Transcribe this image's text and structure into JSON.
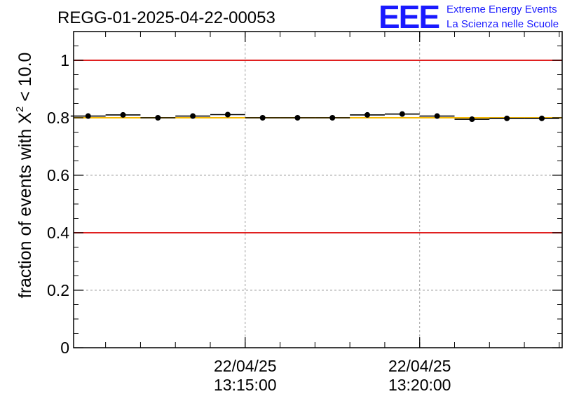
{
  "header": {
    "run_title": "REGG-01-2025-04-22-00053",
    "logo_letters": "EEE",
    "logo_line1": "Extreme Energy Events",
    "logo_line2": "La Scienza nelle Scuole"
  },
  "colors": {
    "logo_blue": "#1a1aff",
    "threshold_red": "#e02020",
    "reference_yellow": "#f5b800",
    "grid_gray": "#a0a0a0",
    "marker_black": "#000000"
  },
  "chart_data": {
    "type": "scatter",
    "title": "REGG-01-2025-04-22-00053",
    "ylabel_prefix": "fraction of events with ",
    "ylabel_symbol": "X",
    "ylabel_superscript": "2",
    "ylabel_suffix": " < 10.0",
    "xlabel": "",
    "x_unit": "minutes",
    "xlim": [
      "13:10:05",
      "13:24:05"
    ],
    "ylim": [
      0,
      1.1
    ],
    "y_ticks": [
      {
        "value": 0,
        "label": "0"
      },
      {
        "value": 0.2,
        "label": "0.2"
      },
      {
        "value": 0.4,
        "label": "0.4"
      },
      {
        "value": 0.6,
        "label": "0.6"
      },
      {
        "value": 0.8,
        "label": "0.8"
      },
      {
        "value": 1.0,
        "label": "1"
      }
    ],
    "x_major_ticks": [
      {
        "time": "13:15:00",
        "date_label": "22/04/25",
        "time_label": "13:15:00"
      },
      {
        "time": "13:20:00",
        "date_label": "22/04/25",
        "time_label": "13:20:00"
      }
    ],
    "x_minor_tick_step_min": 1,
    "grid": true,
    "reference_lines": [
      {
        "y": 1.0,
        "color": "#e02020"
      },
      {
        "y": 0.4,
        "color": "#e02020"
      },
      {
        "y": 0.8,
        "color": "#f5b800"
      }
    ],
    "bin_width_min": 1,
    "points": [
      {
        "x": "13:10:30",
        "y": 0.806
      },
      {
        "x": "13:11:30",
        "y": 0.81
      },
      {
        "x": "13:12:30",
        "y": 0.8
      },
      {
        "x": "13:13:30",
        "y": 0.806
      },
      {
        "x": "13:14:30",
        "y": 0.811
      },
      {
        "x": "13:15:30",
        "y": 0.8
      },
      {
        "x": "13:16:30",
        "y": 0.8
      },
      {
        "x": "13:17:30",
        "y": 0.8
      },
      {
        "x": "13:18:30",
        "y": 0.81
      },
      {
        "x": "13:19:30",
        "y": 0.813
      },
      {
        "x": "13:20:30",
        "y": 0.806
      },
      {
        "x": "13:21:30",
        "y": 0.795
      },
      {
        "x": "13:22:30",
        "y": 0.798
      },
      {
        "x": "13:23:30",
        "y": 0.798
      }
    ]
  }
}
